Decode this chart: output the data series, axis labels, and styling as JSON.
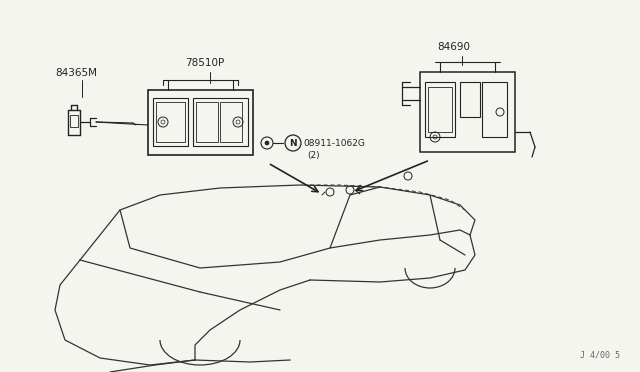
{
  "bg_color": "#f5f5f0",
  "line_color": "#222222",
  "text_color": "#222222",
  "fig_width": 6.4,
  "fig_height": 3.72,
  "dpi": 100,
  "labels": {
    "top_left_part": "84365M",
    "top_center_part": "78510P",
    "top_right_part": "84690",
    "center_nut_n": "N",
    "center_nut_num": "08911-1062G",
    "center_nut_qty": "(2)",
    "bottom_right": "J 4/00 5"
  }
}
